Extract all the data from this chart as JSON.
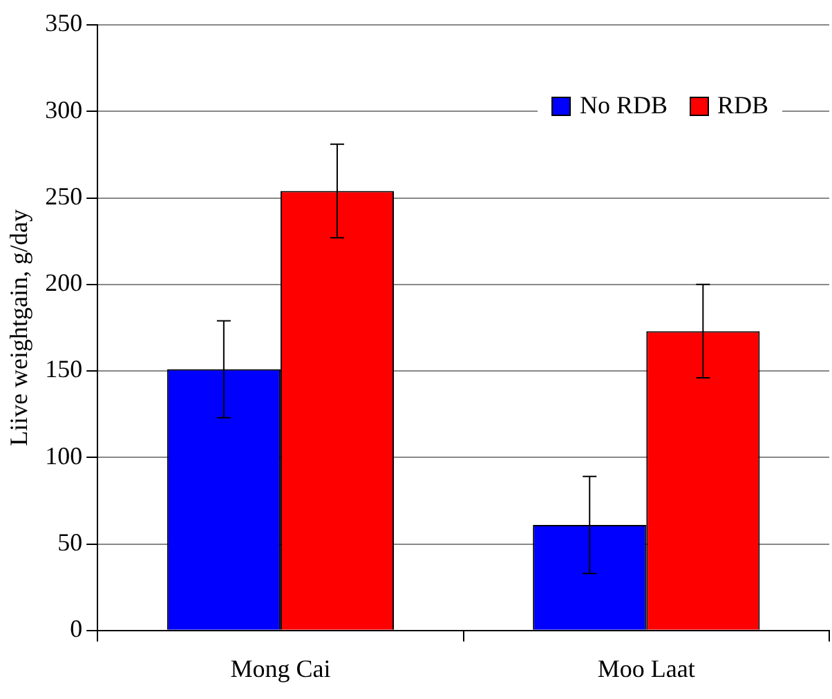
{
  "chart_data": {
    "type": "bar",
    "ylabel": "Liive weightgain, g/day",
    "categories": [
      "Mong Cai",
      "Moo Laat"
    ],
    "series": [
      {
        "name": "No RDB",
        "color": "#0000ff",
        "values": [
          151,
          61
        ],
        "errors": [
          28,
          28
        ]
      },
      {
        "name": "RDB",
        "color": "#ff0000",
        "values": [
          254,
          173
        ],
        "errors": [
          27,
          27
        ]
      }
    ],
    "ylim": [
      0,
      350
    ],
    "yticks": [
      0,
      50,
      100,
      150,
      200,
      250,
      300,
      350
    ],
    "grid": "y",
    "legend": "top right"
  }
}
